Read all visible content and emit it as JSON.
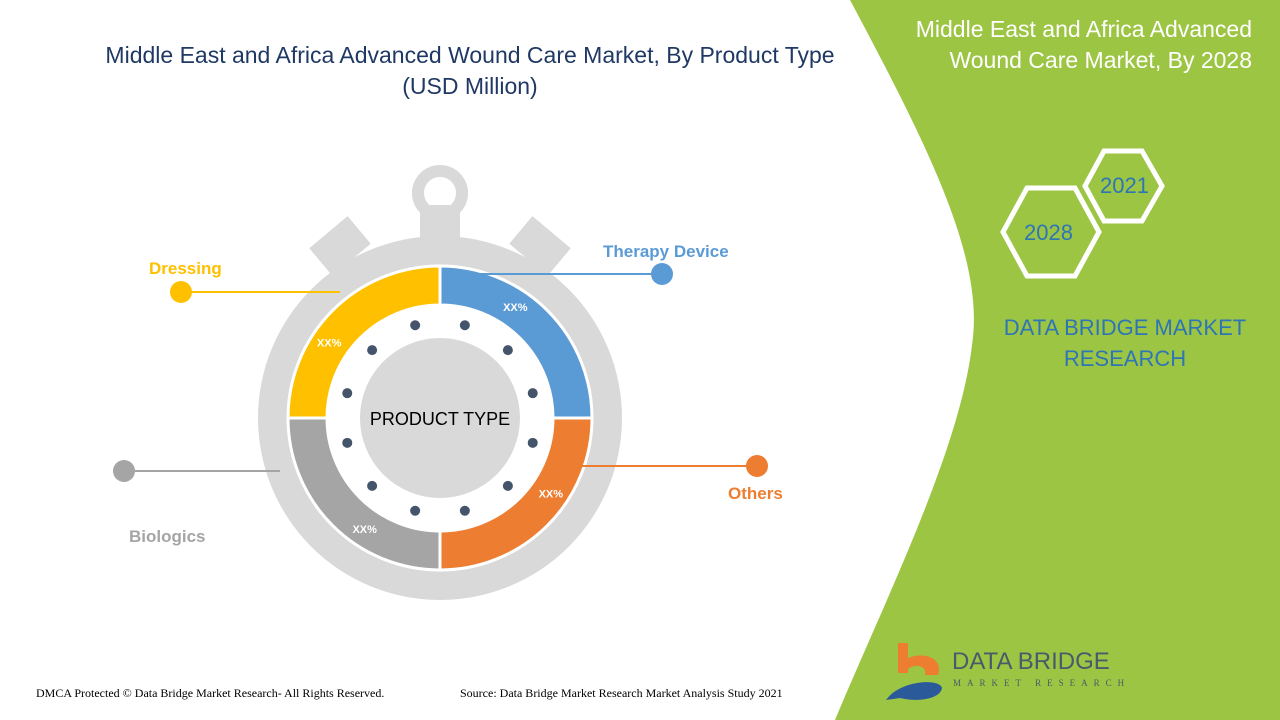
{
  "title": {
    "line1": "Middle East and Africa Advanced Wound Care Market, By Product Type",
    "line2": "(USD Million)"
  },
  "side_panel": {
    "title_line1": "Middle East and Africa Advanced",
    "title_line2": "Wound Care Market, By 2028",
    "hex_years": [
      "2021",
      "2028"
    ],
    "brand_line1": "DATA BRIDGE MARKET",
    "brand_line2": "RESEARCH",
    "logo_text": "DATA BRIDGE",
    "logo_subtext": "MARKET RESEARCH"
  },
  "colors": {
    "green_panel": "#9dc544",
    "title": "#1f3864",
    "brand": "#2e75b6"
  },
  "chart_data": {
    "type": "pie",
    "style": "donut (stopwatch)",
    "center_label": "PRODUCT TYPE",
    "categories": [
      "Therapy Device",
      "Others",
      "Biologics",
      "Dressing"
    ],
    "shares": [
      25,
      25,
      25,
      25
    ],
    "data_labels": [
      "XX%",
      "XX%",
      "XX%",
      "XX%"
    ],
    "colors": [
      "#5b9bd5",
      "#ed7d31",
      "#a5a5a5",
      "#ffc000"
    ]
  },
  "footer": {
    "copyright": "DMCA Protected © Data Bridge Market Research- All Rights Reserved.",
    "source": "Source: Data Bridge Market Research Market Analysis Study 2021"
  }
}
